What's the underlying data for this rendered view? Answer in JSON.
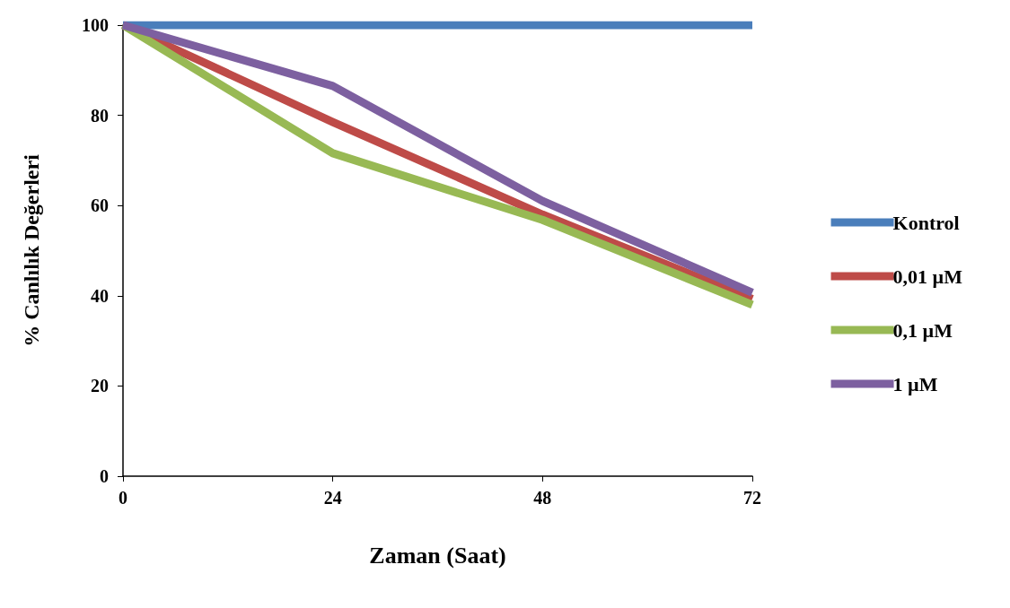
{
  "chart_data": {
    "type": "line",
    "xlabel": "Zaman (Saat)",
    "ylabel": "% Canlılık Değerleri",
    "x": [
      0,
      24,
      48,
      72
    ],
    "xlim": [
      0,
      72
    ],
    "xticks": [
      0,
      24,
      48,
      72
    ],
    "ylim": [
      0,
      100
    ],
    "yticks": [
      0,
      20,
      40,
      60,
      80,
      100
    ],
    "series": [
      {
        "name": "Kontrol",
        "color": "#4a7ebb",
        "values": [
          100,
          100,
          100,
          100
        ]
      },
      {
        "name": "0,01 µM",
        "color": "#be4b48",
        "values": [
          100,
          78.5,
          58,
          39.3
        ]
      },
      {
        "name": "0,1 µM",
        "color": "#98b954",
        "values": [
          100,
          71.6,
          56.8,
          38
        ]
      },
      {
        "name": "1 µM",
        "color": "#7d60a0",
        "values": [
          100,
          86.5,
          61,
          40.7
        ]
      }
    ],
    "grid": false,
    "legend": "right",
    "marker": "none",
    "line_style": "solid"
  }
}
